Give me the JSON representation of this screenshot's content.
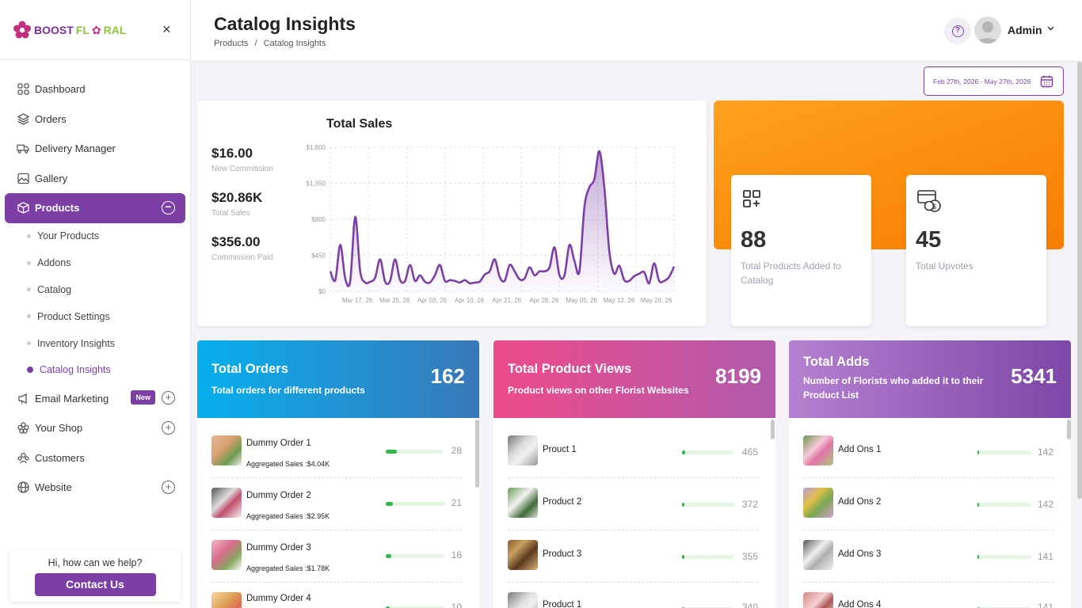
{
  "brand": {
    "part1": "BOOST",
    "part2": "FL",
    "part3": "RAL"
  },
  "sidebar": {
    "items": [
      {
        "label": "Dashboard"
      },
      {
        "label": "Orders"
      },
      {
        "label": "Delivery Manager"
      },
      {
        "label": "Gallery"
      },
      {
        "label": "Products"
      }
    ],
    "sub_items": [
      "Your Products",
      "Addons",
      "Catalog",
      "Product Settings",
      "Inventory Insights",
      "Catalog Insights"
    ],
    "bottom_items": [
      {
        "label": "Email Marketing",
        "badge": "New"
      },
      {
        "label": "Your Shop"
      },
      {
        "label": "Customers"
      },
      {
        "label": "Website"
      }
    ]
  },
  "help": {
    "question": "Hi, how can we help?",
    "button": "Contact Us"
  },
  "header": {
    "title": "Catalog Insights",
    "crumb1": "Products",
    "crumb_sep": "/",
    "crumb2": "Catalog Insights",
    "user": "Admin"
  },
  "date_range": "Feb 27th, 2026 - May 27th, 2026",
  "sales": {
    "title": "Total Sales",
    "stats": [
      {
        "value": "$16.00",
        "label": "New Commission"
      },
      {
        "value": "$20.86K",
        "label": "Total Sales"
      },
      {
        "value": "$356.00",
        "label": "Commission Paid"
      }
    ]
  },
  "chart_data": {
    "type": "area",
    "y_ticks": [
      "$0",
      "$450",
      "$900",
      "$1,350",
      "$1,800"
    ],
    "ylim": [
      0,
      1800
    ],
    "x_ticks": [
      "Mar 17, 26",
      "Mar 25, 26",
      "Apr 03, 26",
      "Apr 10, 26",
      "Apr 21, 26",
      "Apr 28, 26",
      "May 05, 26",
      "May 12, 26",
      "May 26, 26"
    ],
    "values": [
      250,
      140,
      580,
      160,
      130,
      930,
      250,
      110,
      120,
      170,
      400,
      120,
      130,
      400,
      140,
      130,
      330,
      130,
      200,
      120,
      110,
      200,
      330,
      130,
      140,
      130,
      110,
      140,
      100,
      110,
      120,
      210,
      250,
      400,
      180,
      130,
      330,
      250,
      150,
      160,
      300,
      200,
      250,
      250,
      300,
      550,
      200,
      200,
      580,
      380,
      250,
      1050,
      1300,
      1400,
      1750,
      1300,
      500,
      220,
      320,
      140,
      130,
      190,
      220,
      240,
      100,
      350,
      130,
      130,
      180,
      310
    ],
    "color": "#7b3fa6",
    "grid": true
  },
  "mini_cards": [
    {
      "value": "88",
      "label": "Total Products Added to Catalog"
    },
    {
      "value": "45",
      "label": "Total Upvotes"
    }
  ],
  "panels": [
    {
      "title": "Total Orders",
      "subtitle": "Total orders for different products",
      "total": "162",
      "rows": [
        {
          "name": "Dummy Order 1",
          "agg_label": "Aggregated Sales :",
          "agg": "$4.04K",
          "value": "28",
          "fill": 0.2
        },
        {
          "name": "Dummy Order 2",
          "agg_label": "Aggregated Sales :",
          "agg": "$2.95K",
          "value": "21",
          "fill": 0.12
        },
        {
          "name": "Dummy Order 3",
          "agg_label": "Aggregated Sales :",
          "agg": "$1.78K",
          "value": "16",
          "fill": 0.1
        },
        {
          "name": "Dummy Order 4",
          "agg_label": "",
          "agg": "",
          "value": "10",
          "fill": 0.07
        }
      ]
    },
    {
      "title": "Total Product Views",
      "subtitle": "Product views on other Florist Websites",
      "total": "8199",
      "rows": [
        {
          "name": "Prouct 1",
          "value": "465",
          "fill": 0.06
        },
        {
          "name": "Product 2",
          "value": "372",
          "fill": 0.05
        },
        {
          "name": "Product 3",
          "value": "355",
          "fill": 0.04
        },
        {
          "name": "Product 1",
          "value": "340",
          "fill": 0.04
        }
      ]
    },
    {
      "title": "Total Adds",
      "subtitle": "Number of Florists who added it to their Product List",
      "total": "5341",
      "rows": [
        {
          "name": "Add Ons 1",
          "value": "142",
          "fill": 0.03
        },
        {
          "name": "Add Ons 2",
          "value": "142",
          "fill": 0.03
        },
        {
          "name": "Add Ons 3",
          "value": "141",
          "fill": 0.03
        },
        {
          "name": "Add Ons 4",
          "value": "141",
          "fill": 0.03
        }
      ]
    }
  ]
}
